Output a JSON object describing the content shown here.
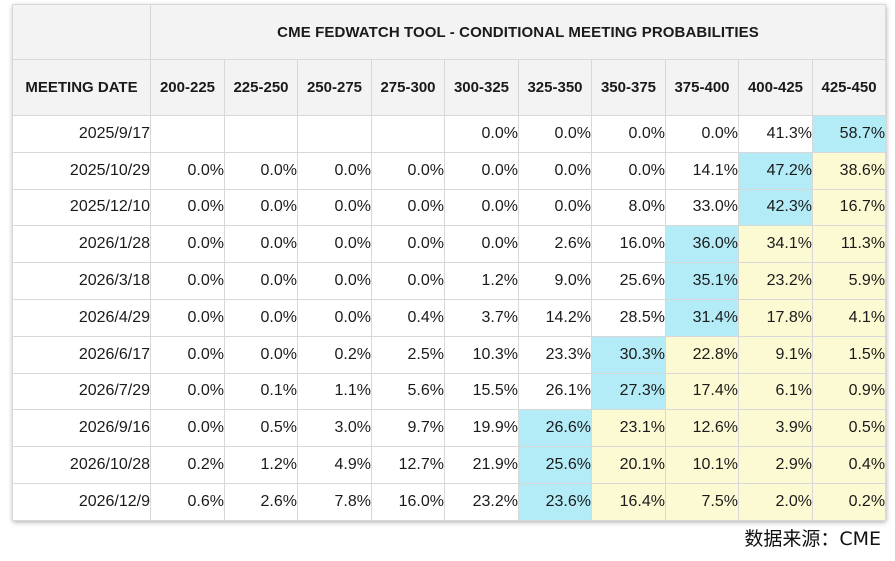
{
  "chart_data": {
    "type": "table",
    "title": "CME FEDWATCH TOOL - CONDITIONAL MEETING PROBABILITIES",
    "row_header_label": "MEETING DATE",
    "columns": [
      "200-225",
      "225-250",
      "250-275",
      "275-300",
      "300-325",
      "325-350",
      "350-375",
      "375-400",
      "400-425",
      "425-450"
    ],
    "rows": [
      {
        "date": "2025/9/17",
        "values": [
          "",
          "",
          "",
          "",
          "0.0%",
          "0.0%",
          "0.0%",
          "0.0%",
          "41.3%",
          "58.7%"
        ]
      },
      {
        "date": "2025/10/29",
        "values": [
          "0.0%",
          "0.0%",
          "0.0%",
          "0.0%",
          "0.0%",
          "0.0%",
          "0.0%",
          "14.1%",
          "47.2%",
          "38.6%"
        ]
      },
      {
        "date": "2025/12/10",
        "values": [
          "0.0%",
          "0.0%",
          "0.0%",
          "0.0%",
          "0.0%",
          "0.0%",
          "8.0%",
          "33.0%",
          "42.3%",
          "16.7%"
        ]
      },
      {
        "date": "2026/1/28",
        "values": [
          "0.0%",
          "0.0%",
          "0.0%",
          "0.0%",
          "0.0%",
          "2.6%",
          "16.0%",
          "36.0%",
          "34.1%",
          "11.3%"
        ]
      },
      {
        "date": "2026/3/18",
        "values": [
          "0.0%",
          "0.0%",
          "0.0%",
          "0.0%",
          "1.2%",
          "9.0%",
          "25.6%",
          "35.1%",
          "23.2%",
          "5.9%"
        ]
      },
      {
        "date": "2026/4/29",
        "values": [
          "0.0%",
          "0.0%",
          "0.0%",
          "0.4%",
          "3.7%",
          "14.2%",
          "28.5%",
          "31.4%",
          "17.8%",
          "4.1%"
        ]
      },
      {
        "date": "2026/6/17",
        "values": [
          "0.0%",
          "0.0%",
          "0.2%",
          "2.5%",
          "10.3%",
          "23.3%",
          "30.3%",
          "22.8%",
          "9.1%",
          "1.5%"
        ]
      },
      {
        "date": "2026/7/29",
        "values": [
          "0.0%",
          "0.1%",
          "1.1%",
          "5.6%",
          "15.5%",
          "26.1%",
          "27.3%",
          "17.4%",
          "6.1%",
          "0.9%"
        ]
      },
      {
        "date": "2026/9/16",
        "values": [
          "0.0%",
          "0.5%",
          "3.0%",
          "9.7%",
          "19.9%",
          "26.6%",
          "23.1%",
          "12.6%",
          "3.9%",
          "0.5%"
        ]
      },
      {
        "date": "2026/10/28",
        "values": [
          "0.2%",
          "1.2%",
          "4.9%",
          "12.7%",
          "21.9%",
          "25.6%",
          "20.1%",
          "10.1%",
          "2.9%",
          "0.4%"
        ]
      },
      {
        "date": "2026/12/9",
        "values": [
          "0.6%",
          "2.6%",
          "7.8%",
          "16.0%",
          "23.2%",
          "23.6%",
          "16.4%",
          "7.5%",
          "2.0%",
          "0.2%"
        ]
      }
    ],
    "highlight_color": "#b3ecf7",
    "above_highlight_color": "#fcfad2"
  },
  "source": "数据来源：CME"
}
